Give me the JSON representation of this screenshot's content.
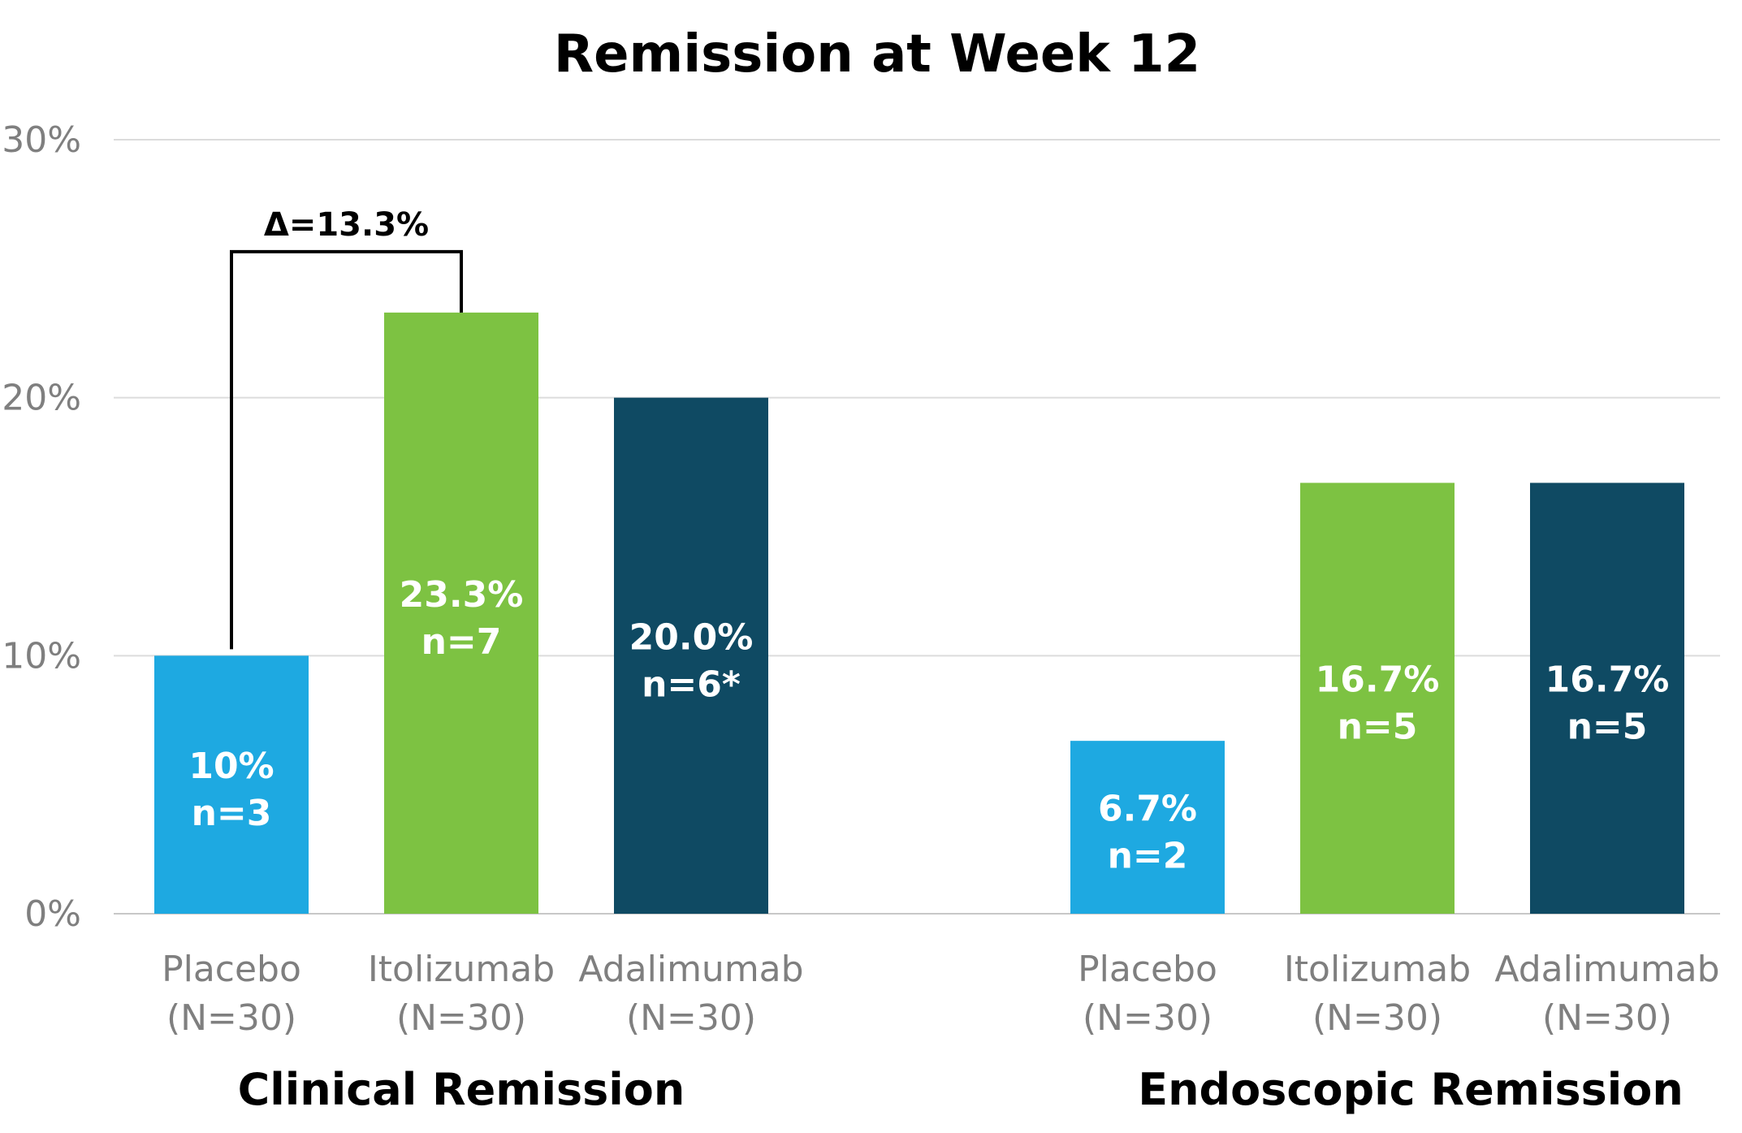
{
  "chart_data": {
    "type": "bar",
    "title": "Remission at Week 12",
    "ylim": [
      0,
      30
    ],
    "yticks": [
      "0%",
      "10%",
      "20%",
      "30%"
    ],
    "grid": true,
    "groups": [
      {
        "name": "Clinical Remission",
        "bars": [
          {
            "category": "Placebo",
            "n_label": "(N=30)",
            "value": 10.0,
            "value_label": "10%",
            "count_label": "n=3",
            "color": "#1EA9E1"
          },
          {
            "category": "Itolizumab",
            "n_label": "(N=30)",
            "value": 23.3,
            "value_label": "23.3%",
            "count_label": "n=7",
            "color": "#7DC242"
          },
          {
            "category": "Adalimumab",
            "n_label": "(N=30)",
            "value": 20.0,
            "value_label": "20.0%",
            "count_label": "n=6*",
            "color": "#0F4A63"
          }
        ]
      },
      {
        "name": "Endoscopic Remission",
        "bars": [
          {
            "category": "Placebo",
            "n_label": "(N=30)",
            "value": 6.7,
            "value_label": "6.7%",
            "count_label": "n=2",
            "color": "#1EA9E1"
          },
          {
            "category": "Itolizumab",
            "n_label": "(N=30)",
            "value": 16.7,
            "value_label": "16.7%",
            "count_label": "n=5",
            "color": "#7DC242"
          },
          {
            "category": "Adalimumab",
            "n_label": "(N=30)",
            "value": 16.7,
            "value_label": "16.7%",
            "count_label": "n=5",
            "color": "#0F4A63"
          }
        ]
      }
    ],
    "annotation": {
      "text": "Δ=13.3%",
      "group": 0,
      "from_bar": 0,
      "to_bar": 1
    }
  }
}
